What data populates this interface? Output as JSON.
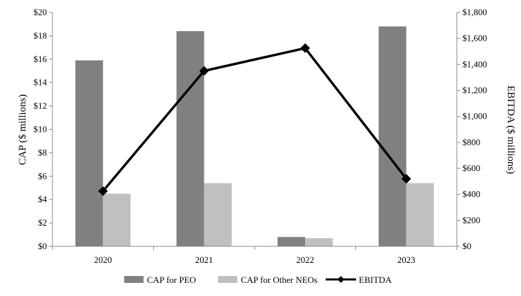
{
  "chart_data": {
    "type": "bar",
    "title": "",
    "categories": [
      "2020",
      "2021",
      "2022",
      "2023"
    ],
    "series": [
      {
        "name": "CAP for PEO",
        "type": "bar",
        "axis": "left",
        "color": "#808080",
        "values": [
          15.9,
          18.4,
          0.8,
          18.8
        ]
      },
      {
        "name": "CAP for Other NEOs",
        "type": "bar",
        "axis": "left",
        "color": "#c0c0c0",
        "values": [
          4.5,
          5.4,
          0.7,
          5.4
        ]
      },
      {
        "name": "EBITDA",
        "type": "line",
        "axis": "right",
        "color": "#000000",
        "marker": "diamond",
        "values": [
          425,
          1350,
          1525,
          520
        ]
      }
    ],
    "ylabel": "CAP ($ millions)",
    "y2label": "EBITDA ($ millions)",
    "ylim": [
      0,
      20
    ],
    "y2lim": [
      0,
      1800
    ],
    "yticks": [
      "$0",
      "$2",
      "$4",
      "$6",
      "$8",
      "$10",
      "$12",
      "$14",
      "$16",
      "$18",
      "$20"
    ],
    "y2ticks": [
      "$0",
      "$200",
      "$400",
      "$600",
      "$800",
      "$1,000",
      "$1,200",
      "$1,400",
      "$1,600",
      "$1,800"
    ],
    "grid": false,
    "legend": "bottom"
  }
}
